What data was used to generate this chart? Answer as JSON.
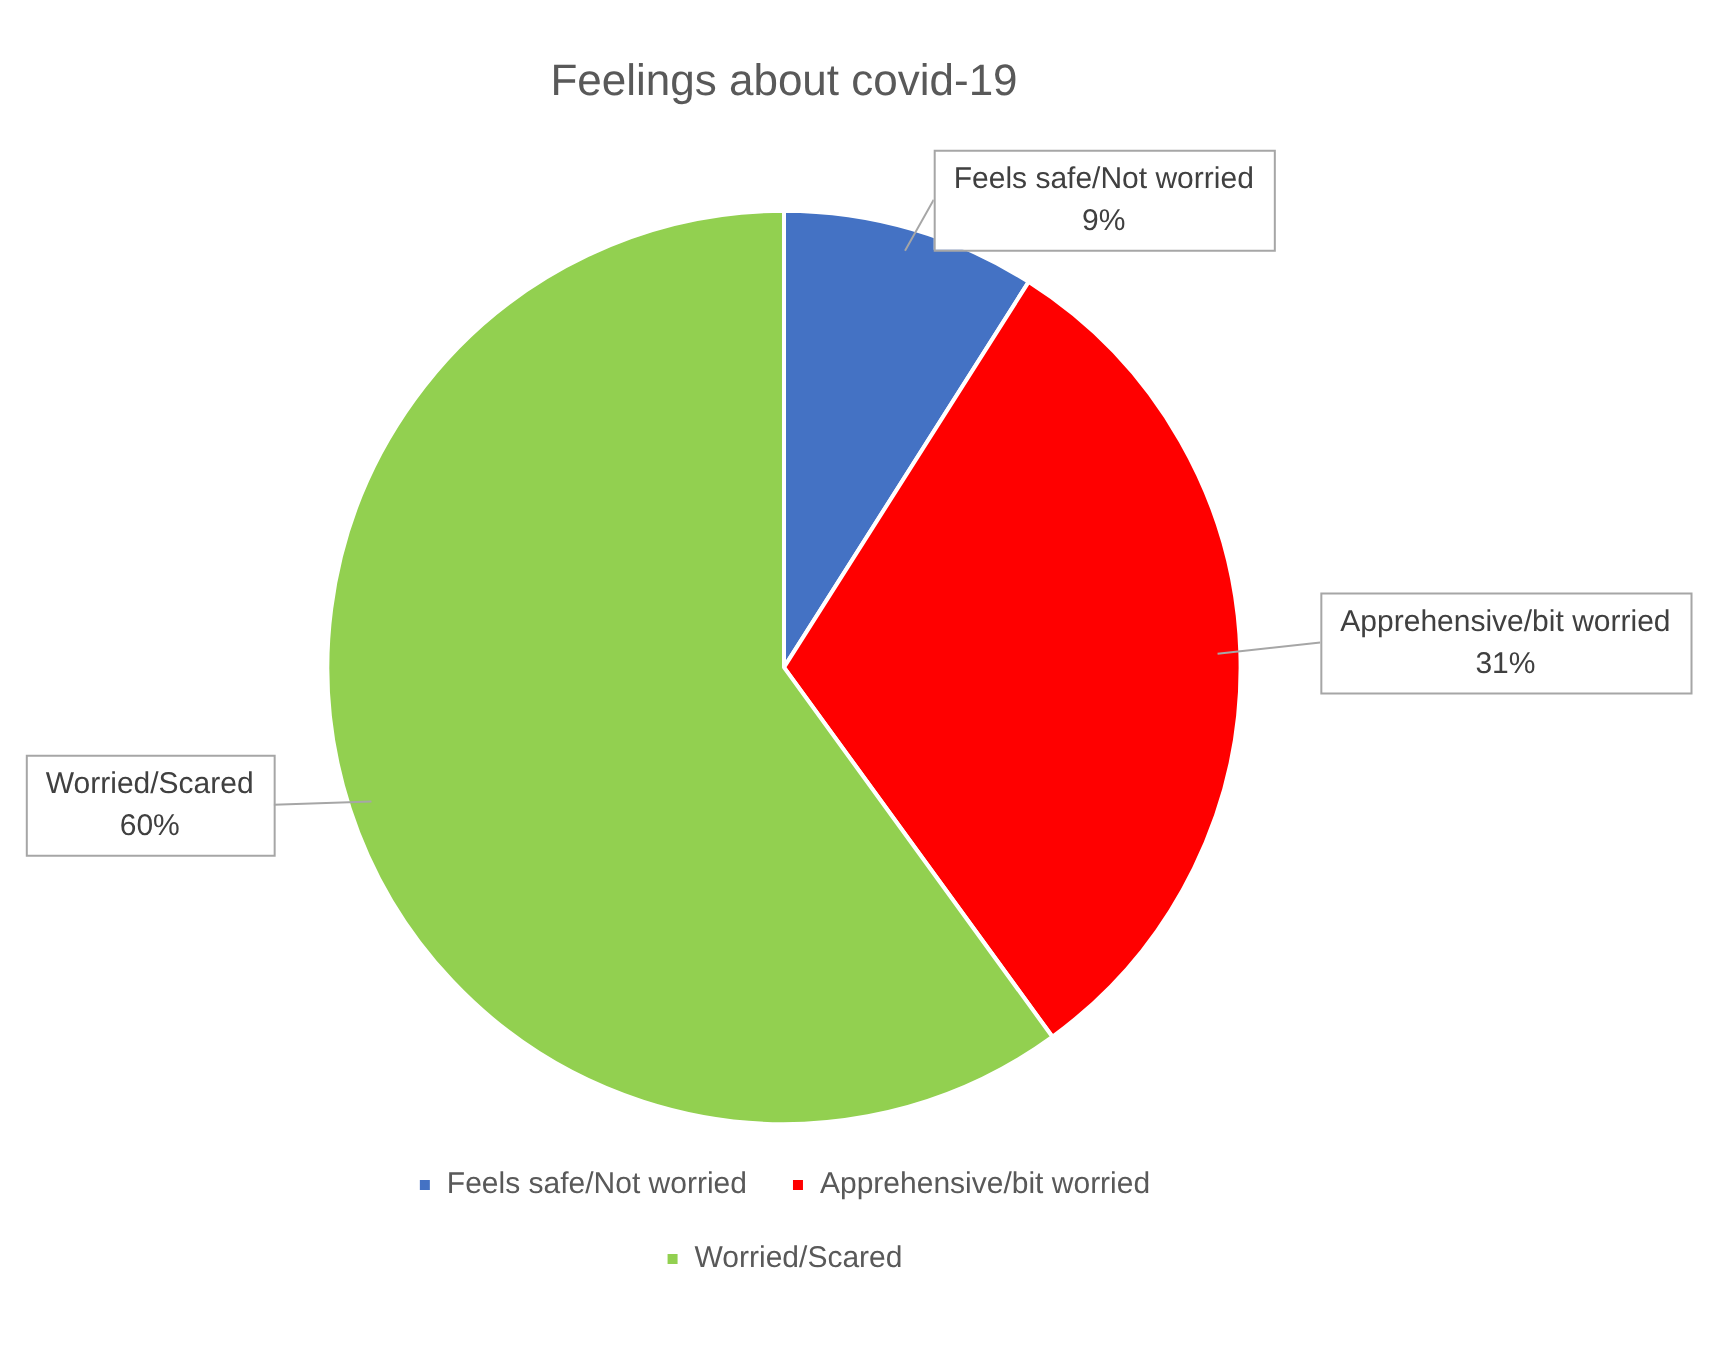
{
  "chart_data": {
    "type": "pie",
    "title": "Feelings about covid-19",
    "categories": [
      "Feels safe/Not worried",
      "Apprehensive/bit worried",
      "Worried/Scared"
    ],
    "values": [
      9,
      31,
      60
    ],
    "colors": [
      "#4472c4",
      "#ff0000",
      "#92d050"
    ],
    "value_labels": [
      "9%",
      "31%",
      "60%"
    ],
    "legend": "bottom"
  }
}
